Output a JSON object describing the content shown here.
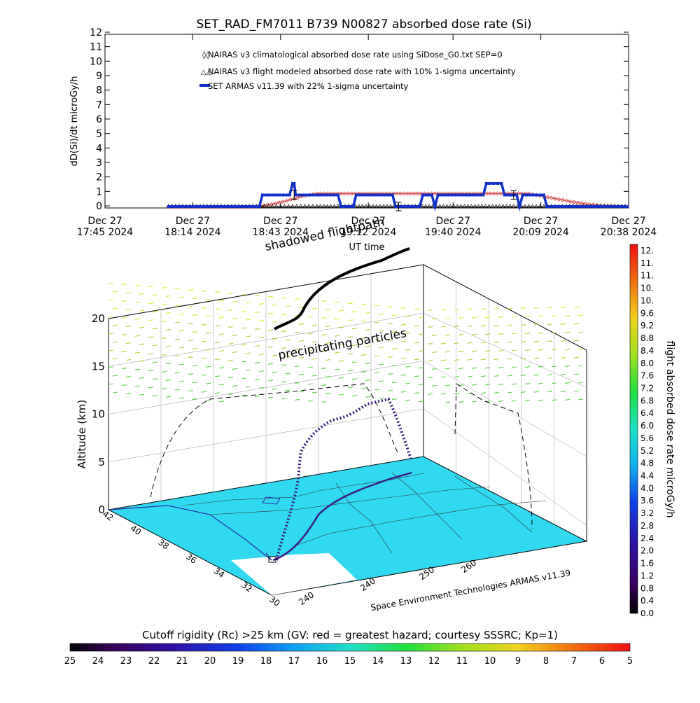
{
  "chart_data": [
    {
      "type": "line",
      "title": "SET_RAD_FM7011  B739 N00827 absorbed dose rate (Si)",
      "xlabel": "UT time",
      "ylabel": "dD(Si)/dt microGy/h",
      "ylim": [
        0,
        12
      ],
      "yticks": [
        "0",
        "1",
        "2",
        "3",
        "4",
        "5",
        "6",
        "7",
        "8",
        "9",
        "10",
        "11",
        "12"
      ],
      "xticks": [
        {
          "t": 0,
          "line1": "Dec 27",
          "line2": "17:45 2024"
        },
        {
          "t": 29,
          "line1": "Dec 27",
          "line2": "18:14 2024"
        },
        {
          "t": 58,
          "line1": "Dec 27",
          "line2": "18:43 2024"
        },
        {
          "t": 87,
          "line1": "Dec 27",
          "line2": "19:12 2024"
        },
        {
          "t": 115,
          "line1": "Dec 27",
          "line2": "19:40 2024"
        },
        {
          "t": 144,
          "line1": "Dec 27",
          "line2": "20:09 2024"
        },
        {
          "t": 173,
          "line1": "Dec 27",
          "line2": "20:38 2024"
        }
      ],
      "xlim_minutes": [
        0,
        173
      ],
      "legend_position": "top-left",
      "series": [
        {
          "name": "NAIRAS v3 climatological absorbed dose rate using SiDose_G0.txt SEP=0",
          "color": "#d04040",
          "marker": "diamond",
          "t": [
            21,
            50,
            55,
            60,
            65,
            70,
            140,
            145,
            150,
            155,
            160,
            165,
            173
          ],
          "y": [
            0,
            0,
            0.15,
            0.4,
            0.7,
            0.9,
            0.9,
            0.7,
            0.5,
            0.3,
            0.15,
            0.05,
            0
          ]
        },
        {
          "name": "NAIRAS v3 flight modeled absorbed dose rate with 10% 1-sigma uncertainty",
          "color": "#000000",
          "marker": "triangle",
          "t": [
            21,
            50,
            54,
            58,
            62,
            66,
            70,
            135,
            140,
            145,
            150,
            173
          ],
          "y": [
            0,
            0,
            0,
            0,
            0,
            0,
            0,
            0,
            0,
            0,
            0,
            0
          ]
        },
        {
          "name": "SET ARMAS v11.39 with 22% 1-sigma uncertainty",
          "color": "#1030c8",
          "marker": "square",
          "t": [
            21,
            51,
            52,
            60,
            61,
            62,
            62.5,
            63,
            70,
            71,
            72,
            77,
            78,
            79,
            81,
            82,
            83,
            95,
            96,
            97,
            104,
            105,
            106,
            108,
            109,
            110,
            125,
            126,
            127,
            131,
            132,
            133,
            136,
            137,
            138,
            145,
            146,
            147,
            173
          ],
          "y": [
            0,
            0,
            0.8,
            0.8,
            0.8,
            1.6,
            1.6,
            0.8,
            0.8,
            0.8,
            0.8,
            0.8,
            0,
            0,
            0,
            0,
            0.8,
            0.8,
            0,
            0,
            0,
            0.8,
            0.8,
            0.8,
            0,
            0.8,
            0.8,
            1.6,
            1.6,
            1.6,
            0.8,
            0.8,
            0.8,
            0,
            0.8,
            0.8,
            0,
            0,
            0
          ]
        }
      ]
    },
    {
      "type": "scatter",
      "subtype": "3d-flight-track",
      "zlabel": "Altitude (km)",
      "zlim": [
        0,
        20
      ],
      "zticks": [
        "0",
        "5",
        "10",
        "15",
        "20"
      ],
      "lat_ticks": [
        "42",
        "40",
        "38",
        "36",
        "34",
        "32",
        "30"
      ],
      "lon_ticks": [
        "240",
        "240",
        "250",
        "260"
      ],
      "annotations": [
        "shadowed flightpath",
        "precipitating particles"
      ],
      "credit": "Space Environment Technologies ARMAS v11.39",
      "colorbar": {
        "title": "flight absorbed dose rate microGy/h",
        "labels": [
          "12.",
          "11.",
          "11.",
          "10.",
          "10.",
          "9.6",
          "9.2",
          "8.8",
          "8.4",
          "8.0",
          "7.6",
          "7.2",
          "6.8",
          "6.4",
          "6.0",
          "5.6",
          "5.2",
          "4.8",
          "4.4",
          "4.0",
          "3.6",
          "3.2",
          "2.8",
          "2.4",
          "2.0",
          "1.6",
          "1.2",
          "0.8",
          "0.4",
          "0.0"
        ]
      },
      "colors": {
        "map_fill": "#30d8f0",
        "map_outline": "#2020a0",
        "track_low": "#2a0a40",
        "track_high": "#4020a0",
        "shadow_track": "#000000"
      }
    },
    {
      "type": "heatmap",
      "subtype": "colorbar",
      "title": "Cutoff rigidity (Rc) >25 km (GV: red = greatest hazard; courtesy SSSRC; Kp=1)",
      "labels": [
        "25",
        "24",
        "23",
        "22",
        "21",
        "20",
        "19",
        "18",
        "17",
        "16",
        "15",
        "14",
        "13",
        "12",
        "11",
        "10",
        "9",
        "8",
        "7",
        "6",
        "5"
      ]
    }
  ]
}
